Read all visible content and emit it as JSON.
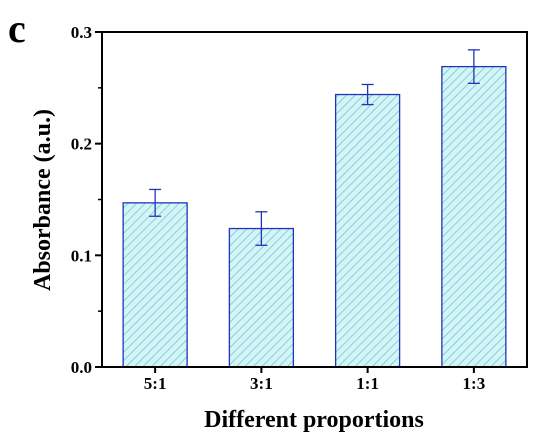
{
  "panel_label": "c",
  "colors": {
    "bar_fill": "#d6f4f6",
    "bar_hatch": "#58c8d4",
    "bar_edge": "#2233bb",
    "error_bar": "#2233bb",
    "axis": "#000000"
  },
  "chart_data": {
    "type": "bar",
    "categories": [
      "5:1",
      "3:1",
      "1:1",
      "1:3"
    ],
    "values": [
      0.147,
      0.124,
      0.244,
      0.269
    ],
    "errors": [
      0.012,
      0.015,
      0.009,
      0.015
    ],
    "xlabel": "Different proportions",
    "ylabel": "Absorbance (a.u.)",
    "ylim": [
      0,
      0.3
    ],
    "yticks": [
      0.0,
      0.1,
      0.2,
      0.3
    ],
    "ytick_labels": [
      "0.0",
      "0.1",
      "0.2",
      "0.3"
    ],
    "grid": false,
    "hatch": "diagonal"
  }
}
